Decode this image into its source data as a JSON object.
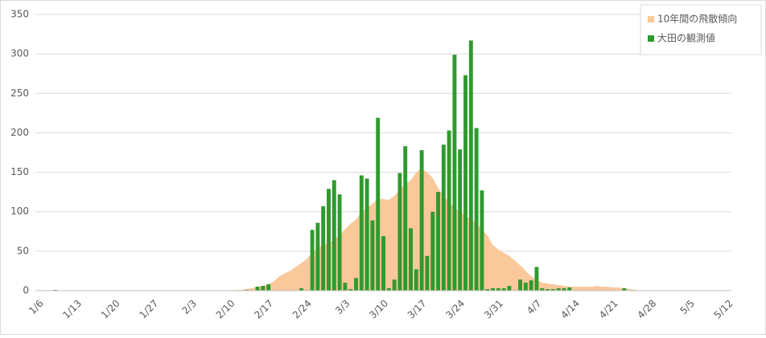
{
  "chart_data": {
    "type": "bar",
    "categories": [
      "1/6",
      null,
      null,
      null,
      null,
      null,
      null,
      "1/13",
      null,
      null,
      null,
      null,
      null,
      null,
      "1/20",
      null,
      null,
      null,
      null,
      null,
      null,
      "1/27",
      null,
      null,
      null,
      null,
      null,
      null,
      "2/3",
      null,
      null,
      null,
      null,
      null,
      null,
      "2/10",
      null,
      null,
      null,
      null,
      null,
      null,
      "2/17",
      null,
      null,
      null,
      null,
      null,
      null,
      "2/24",
      null,
      null,
      null,
      null,
      null,
      null,
      "3/3",
      null,
      null,
      null,
      null,
      null,
      null,
      "3/10",
      null,
      null,
      null,
      null,
      null,
      null,
      "3/17",
      null,
      null,
      null,
      null,
      null,
      null,
      "3/24",
      null,
      null,
      null,
      null,
      null,
      null,
      "3/31",
      null,
      null,
      null,
      null,
      null,
      null,
      "4/7",
      null,
      null,
      null,
      null,
      null,
      null,
      "4/14",
      null,
      null,
      null,
      null,
      null,
      null,
      "4/21",
      null,
      null,
      null,
      null,
      null,
      null,
      "4/28",
      null,
      null,
      null,
      null,
      null,
      null,
      "5/5",
      null,
      null,
      null,
      null,
      null,
      null,
      "5/12"
    ],
    "series": [
      {
        "name": "10年間の飛散傾向",
        "type": "area",
        "color": "#f9c89b",
        "values": [
          0,
          0,
          0,
          0,
          0,
          0,
          0,
          0,
          0,
          0,
          0,
          0,
          0,
          0,
          0,
          0,
          0,
          0,
          0,
          0,
          0,
          0,
          0,
          0,
          0,
          0,
          0,
          0,
          0,
          0,
          0,
          0,
          0,
          0,
          0,
          0,
          1,
          1,
          2,
          3,
          5,
          6,
          8,
          12,
          18,
          22,
          25,
          30,
          35,
          40,
          48,
          55,
          58,
          60,
          65,
          70,
          78,
          85,
          90,
          100,
          105,
          110,
          117,
          116,
          115,
          120,
          128,
          135,
          140,
          150,
          155,
          150,
          143,
          130,
          120,
          112,
          105,
          100,
          95,
          90,
          85,
          78,
          70,
          58,
          52,
          48,
          44,
          38,
          32,
          25,
          18,
          14,
          10,
          9,
          8,
          7,
          6,
          5,
          5,
          5,
          5,
          5,
          6,
          5,
          5,
          4,
          4,
          3,
          2,
          1,
          0,
          0,
          0,
          0,
          0,
          0,
          0,
          0,
          0,
          0,
          0,
          0,
          0,
          0,
          0,
          0,
          0
        ]
      },
      {
        "name": "大田の観測値",
        "type": "bar",
        "color": "#2e9a2e",
        "values": [
          0,
          0,
          0,
          1,
          0,
          0,
          0,
          0,
          0,
          0,
          0,
          0,
          0,
          0,
          0,
          0,
          0,
          0,
          0,
          0,
          0,
          0,
          0,
          0,
          0,
          0,
          0,
          0,
          0,
          0,
          0,
          0,
          0,
          0,
          0,
          0,
          0,
          0,
          1,
          0,
          5,
          6,
          8,
          0,
          0,
          0,
          0,
          0,
          3,
          0,
          77,
          86,
          107,
          129,
          140,
          122,
          10,
          2,
          16,
          146,
          142,
          89,
          219,
          69,
          3,
          14,
          149,
          183,
          79,
          27,
          178,
          44,
          100,
          125,
          185,
          203,
          299,
          179,
          273,
          317,
          206,
          127,
          2,
          3,
          3,
          3,
          6,
          0,
          14,
          10,
          13,
          30,
          3,
          2,
          2,
          3,
          3,
          4,
          0,
          0,
          0,
          0,
          0,
          0,
          0,
          0,
          0,
          3,
          0,
          0,
          0,
          0,
          0,
          0,
          0,
          0,
          0,
          0,
          0,
          0,
          0,
          0,
          0,
          0,
          0,
          0,
          0
        ]
      }
    ],
    "ylim": [
      0,
      350
    ],
    "yticks": [
      0,
      50,
      100,
      150,
      200,
      250,
      300,
      350
    ],
    "grid": true,
    "legend": "top-right"
  }
}
